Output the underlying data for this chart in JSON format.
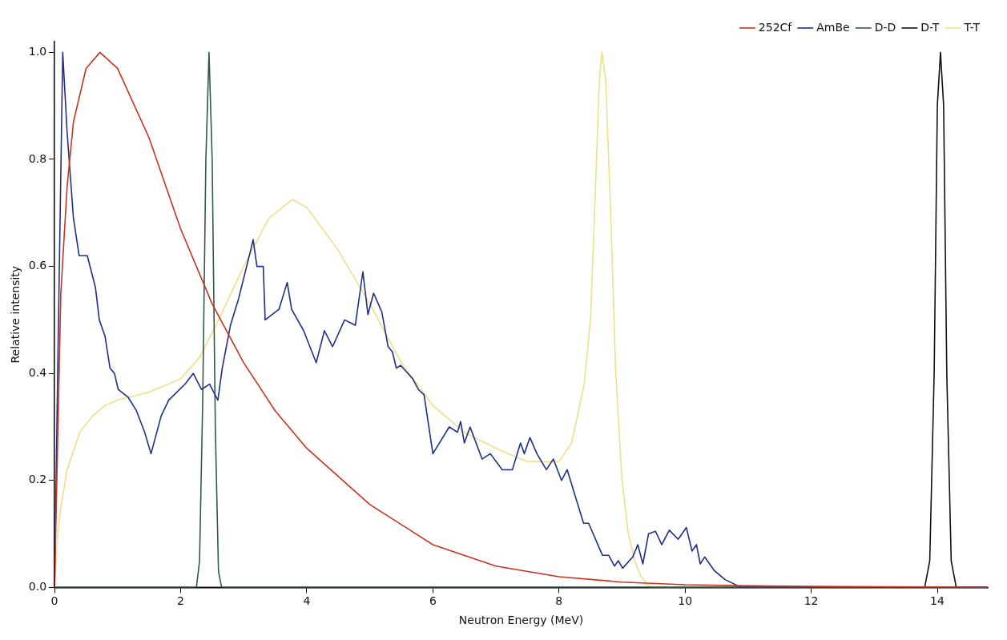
{
  "chart_data": {
    "type": "line",
    "xlabel": "Neutron Energy (MeV)",
    "ylabel": "Relative intensity",
    "xlim": [
      0,
      14.8
    ],
    "ylim": [
      0,
      1.02
    ],
    "xticks": [
      0,
      2,
      4,
      6,
      8,
      10,
      12,
      14
    ],
    "yticks": [
      {
        "value": 0,
        "label": "0.0"
      },
      {
        "value": 0.2,
        "label": "0.2"
      },
      {
        "value": 0.4,
        "label": "0.4"
      },
      {
        "value": 0.6,
        "label": "0.6"
      },
      {
        "value": 0.8,
        "label": "0.8"
      },
      {
        "value": 1,
        "label": "1.0"
      }
    ],
    "grid": false,
    "legend": "top right",
    "marker": "none",
    "line_style": "solid",
    "series": [
      {
        "name": "252Cf",
        "color": "#c8321e",
        "x": [
          0,
          0.1,
          0.2,
          0.3,
          0.5,
          0.72,
          1.0,
          1.5,
          2,
          2.5,
          3,
          3.5,
          4,
          5,
          6,
          7,
          8,
          9,
          10,
          11,
          12,
          14.8
        ],
        "values": [
          0,
          0.55,
          0.75,
          0.87,
          0.97,
          1.0,
          0.97,
          0.84,
          0.67,
          0.53,
          0.42,
          0.33,
          0.26,
          0.155,
          0.08,
          0.04,
          0.02,
          0.01,
          0.005,
          0.003,
          0.002,
          0
        ]
      },
      {
        "name": "AmBe",
        "color": "#1f2e8a",
        "x": [
          0,
          0.05,
          0.13,
          0.2,
          0.3,
          0.39,
          0.52,
          0.65,
          0.71,
          0.8,
          0.88,
          0.95,
          1.01,
          1.17,
          1.3,
          1.43,
          1.53,
          1.69,
          1.81,
          2.07,
          2.2,
          2.33,
          2.46,
          2.59,
          2.66,
          2.79,
          2.92,
          3.11,
          3.15,
          3.21,
          3.31,
          3.34,
          3.56,
          3.69,
          3.76,
          3.95,
          4.15,
          4.28,
          4.41,
          4.6,
          4.77,
          4.89,
          4.97,
          5.06,
          5.19,
          5.29,
          5.36,
          5.42,
          5.49,
          5.68,
          5.77,
          5.86,
          6.0,
          6.26,
          6.39,
          6.44,
          6.5,
          6.59,
          6.78,
          6.91,
          7.1,
          7.26,
          7.39,
          7.45,
          7.54,
          7.65,
          7.8,
          7.91,
          8.04,
          8.13,
          8.39,
          8.47,
          8.69,
          8.79,
          8.88,
          8.94,
          9.01,
          9.17,
          9.25,
          9.33,
          9.42,
          9.53,
          9.63,
          9.75,
          9.89,
          10.02,
          10.11,
          10.18,
          10.24,
          10.31,
          10.46,
          10.63,
          10.89,
          14.8
        ],
        "values": [
          0,
          0.4,
          1.0,
          0.85,
          0.69,
          0.62,
          0.62,
          0.56,
          0.5,
          0.47,
          0.41,
          0.4,
          0.37,
          0.355,
          0.33,
          0.29,
          0.25,
          0.32,
          0.35,
          0.38,
          0.4,
          0.37,
          0.38,
          0.35,
          0.41,
          0.49,
          0.54,
          0.63,
          0.65,
          0.6,
          0.6,
          0.5,
          0.52,
          0.57,
          0.52,
          0.48,
          0.42,
          0.48,
          0.45,
          0.5,
          0.49,
          0.59,
          0.51,
          0.55,
          0.515,
          0.45,
          0.44,
          0.41,
          0.415,
          0.39,
          0.37,
          0.36,
          0.25,
          0.3,
          0.29,
          0.31,
          0.27,
          0.3,
          0.24,
          0.25,
          0.22,
          0.22,
          0.27,
          0.25,
          0.28,
          0.25,
          0.22,
          0.24,
          0.2,
          0.22,
          0.12,
          0.12,
          0.06,
          0.06,
          0.04,
          0.05,
          0.036,
          0.057,
          0.08,
          0.044,
          0.1,
          0.105,
          0.08,
          0.107,
          0.09,
          0.112,
          0.068,
          0.08,
          0.044,
          0.057,
          0.032,
          0.015,
          0,
          0
        ]
      },
      {
        "name": "D-D",
        "color": "#2f5a4a",
        "x": [
          0,
          2.25,
          2.3,
          2.35,
          2.4,
          2.45,
          2.5,
          2.55,
          2.6,
          2.65,
          14.8
        ],
        "values": [
          0,
          0,
          0.05,
          0.35,
          0.8,
          1.0,
          0.8,
          0.3,
          0.03,
          0,
          0
        ]
      },
      {
        "name": "D-T",
        "color": "#111111",
        "x": [
          0,
          13.8,
          13.88,
          13.95,
          14.0,
          14.05,
          14.1,
          14.15,
          14.22,
          14.3,
          14.8
        ],
        "values": [
          0,
          0,
          0.05,
          0.4,
          0.9,
          1.0,
          0.9,
          0.4,
          0.05,
          0,
          0
        ]
      },
      {
        "name": "T-T",
        "color": "#eedf8a",
        "x": [
          0,
          0.05,
          0.1,
          0.2,
          0.4,
          0.6,
          0.8,
          1.0,
          1.5,
          2.0,
          2.3,
          2.6,
          3.0,
          3.4,
          3.77,
          4.0,
          4.5,
          5,
          5.5,
          6,
          6.5,
          7,
          7.5,
          8,
          8.2,
          8.4,
          8.5,
          8.58,
          8.64,
          8.68,
          8.74,
          8.82,
          8.9,
          9.0,
          9.1,
          9.2,
          9.3,
          9.45,
          14.8
        ],
        "values": [
          0,
          0.1,
          0.15,
          0.22,
          0.29,
          0.32,
          0.34,
          0.35,
          0.365,
          0.39,
          0.43,
          0.5,
          0.6,
          0.69,
          0.725,
          0.71,
          0.63,
          0.53,
          0.42,
          0.34,
          0.29,
          0.26,
          0.235,
          0.235,
          0.27,
          0.38,
          0.5,
          0.75,
          0.95,
          1.0,
          0.95,
          0.7,
          0.4,
          0.2,
          0.1,
          0.05,
          0.02,
          0,
          0
        ]
      }
    ]
  }
}
